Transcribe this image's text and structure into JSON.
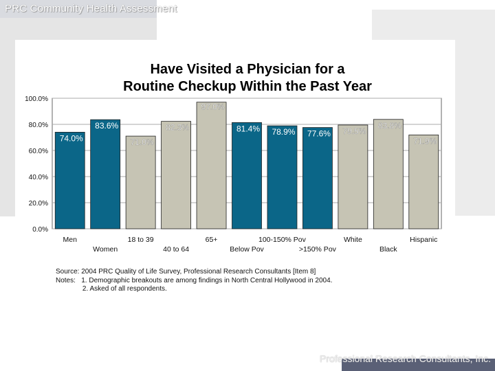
{
  "header": {
    "title": "PRC Community Health Assessment"
  },
  "footer": {
    "text": "Professional Research Consultants, Inc."
  },
  "chart_data": {
    "type": "bar",
    "title_lines": [
      "Have Visited a Physician for a",
      "Routine Checkup Within the Past Year"
    ],
    "categories": [
      "Men",
      "Women",
      "18 to 39",
      "40 to 64",
      "65+",
      "Below Pov",
      "100-150% Pov",
      ">150% Pov",
      "White",
      "Black",
      "Hispanic"
    ],
    "values": [
      74.0,
      83.6,
      71.0,
      82.3,
      97.0,
      81.4,
      78.9,
      77.6,
      79.5,
      83.8,
      71.9
    ],
    "value_labels": [
      "74.0%",
      "83.6%",
      "71.0%",
      "82.3%",
      "97.0%",
      "81.4%",
      "78.9%",
      "77.6%",
      "79.5%",
      "83.8%",
      "71.9%"
    ],
    "bar_colors": [
      "#0b6688",
      "#0b6688",
      "#c6c4b4",
      "#c6c4b4",
      "#c6c4b4",
      "#0b6688",
      "#0b6688",
      "#0b6688",
      "#c6c4b4",
      "#c6c4b4",
      "#c6c4b4"
    ],
    "yticks": [
      "0.0%",
      "20.0%",
      "40.0%",
      "60.0%",
      "80.0%",
      "100.0%"
    ],
    "ylim": [
      0,
      100
    ],
    "grid": true
  },
  "notes": {
    "source": "Source: 2004 PRC Quality of Life Survey, Professional Research Consultants [Item 8]",
    "notes_1": "Notes:   1. Demographic breakouts are among findings in North Central Hollywood in 2004.",
    "notes_2": "              2. Asked of all respondents."
  }
}
